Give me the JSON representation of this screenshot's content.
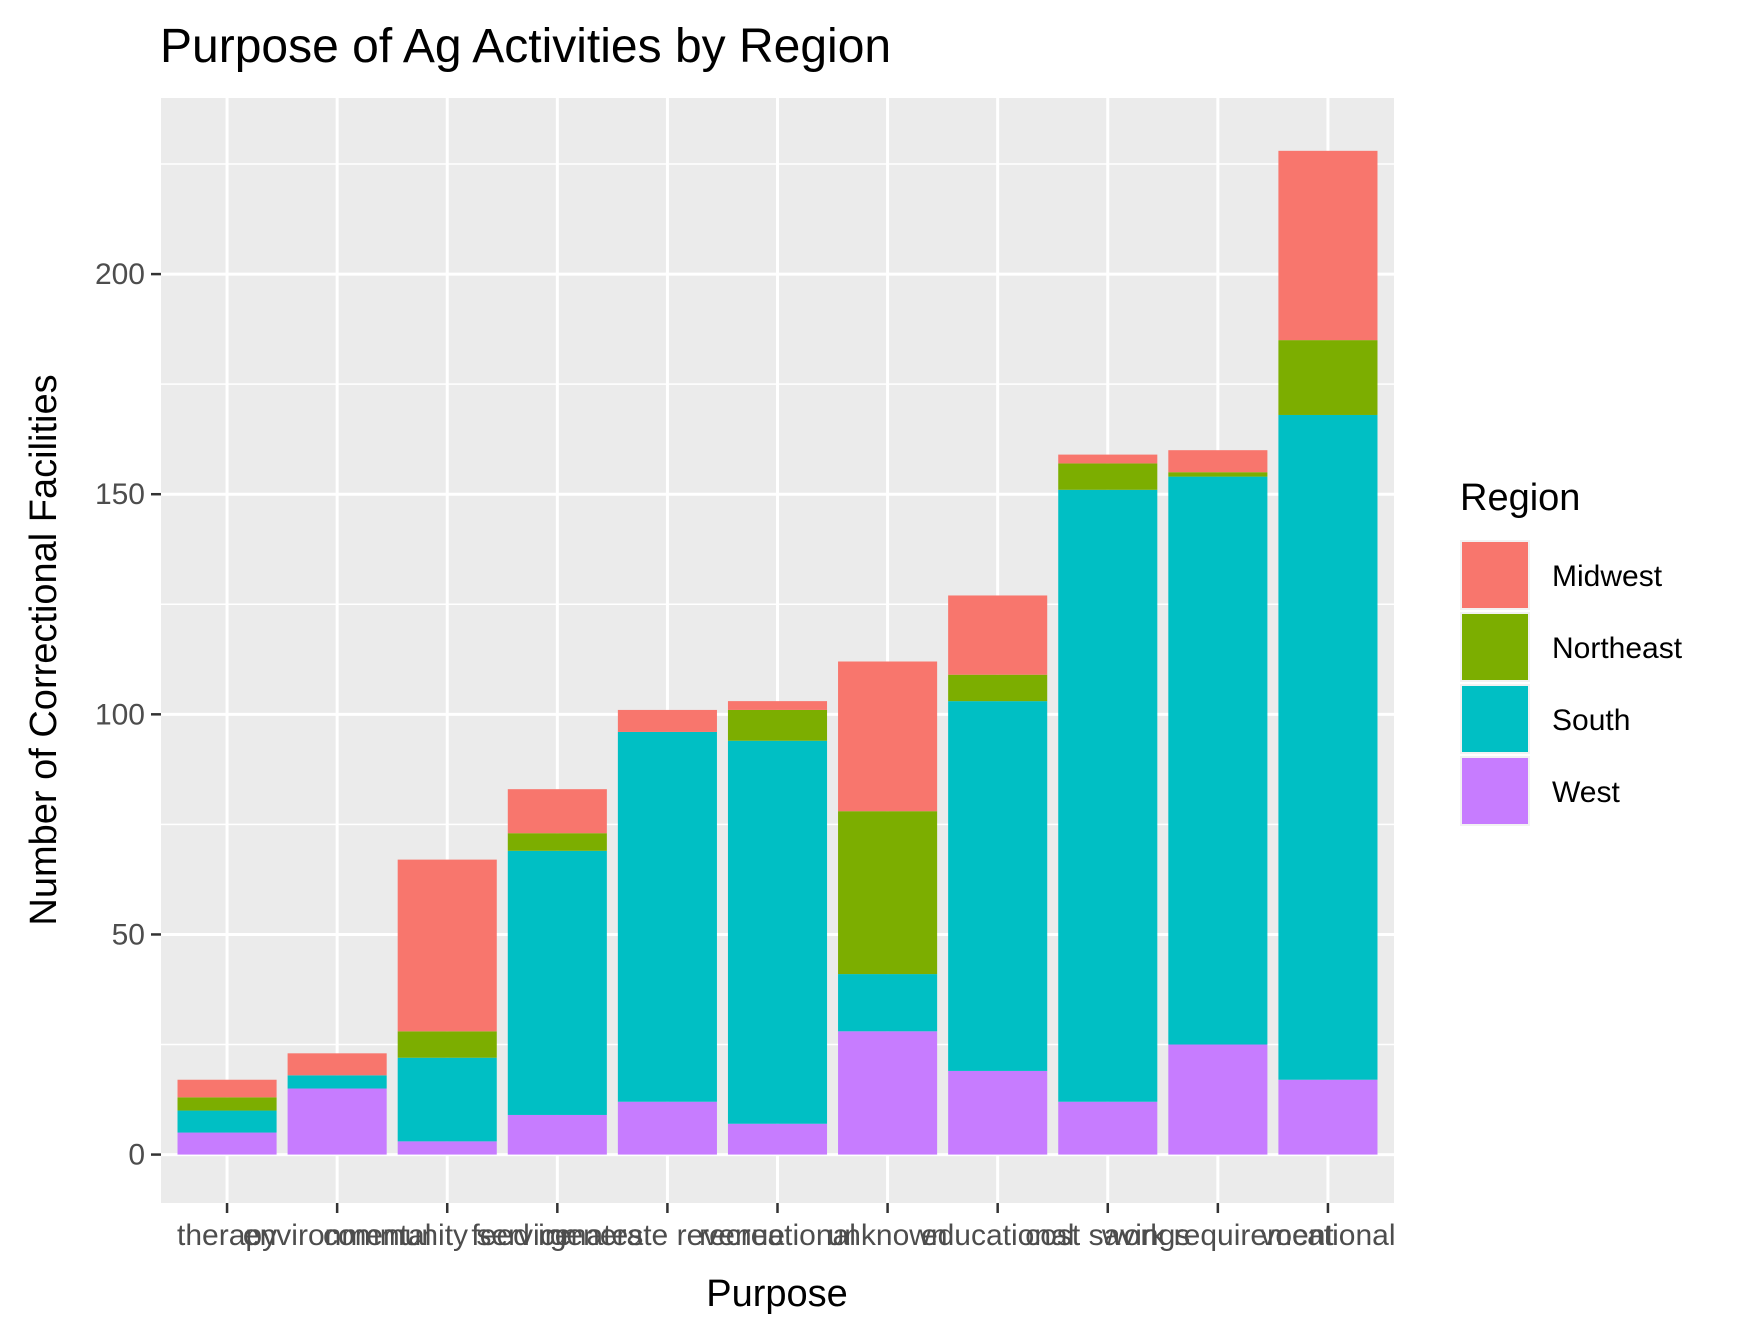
{
  "chart_data": {
    "type": "bar",
    "stacked": true,
    "title": "Purpose of Ag Activities by Region",
    "xlabel": "Purpose",
    "ylabel": "Number of Correctional Facilities",
    "categories": [
      "therapy",
      "environmental",
      "community service",
      "feed inmates",
      "generate revenue",
      "recreational",
      "unknown",
      "educational",
      "cost savings",
      "work requirement",
      "vocational"
    ],
    "ylim": [
      -11,
      240
    ],
    "yticks": [
      0,
      50,
      100,
      150,
      200
    ],
    "ytick_labels": [
      "0",
      "50",
      "100",
      "150",
      "200"
    ],
    "legend": {
      "title": "Region",
      "position": "right",
      "entries": [
        "Midwest",
        "Northeast",
        "South",
        "West"
      ]
    },
    "series": [
      {
        "name": "West",
        "color": "#C77CFF",
        "values": [
          5,
          15,
          3,
          9,
          12,
          7,
          28,
          19,
          12,
          25,
          17
        ]
      },
      {
        "name": "South",
        "color": "#00BFC4",
        "values": [
          5,
          3,
          19,
          60,
          84,
          87,
          13,
          84,
          139,
          129,
          151
        ]
      },
      {
        "name": "Northeast",
        "color": "#7CAE00",
        "values": [
          3,
          0,
          6,
          4,
          0,
          7,
          37,
          6,
          6,
          1,
          17
        ]
      },
      {
        "name": "Midwest",
        "color": "#F8766D",
        "values": [
          4,
          5,
          39,
          10,
          5,
          2,
          34,
          18,
          2,
          5,
          43
        ]
      }
    ],
    "grid": true
  }
}
